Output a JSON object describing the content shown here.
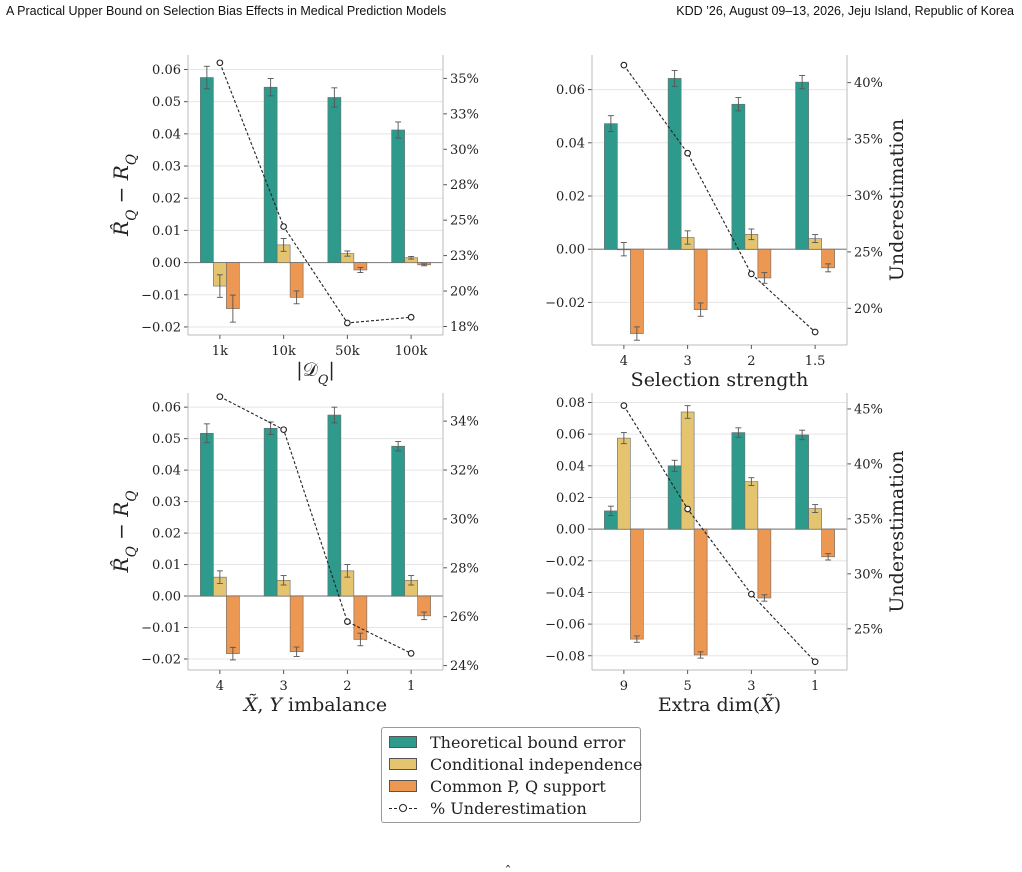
{
  "header": {
    "left": "A Practical Upper Bound on Selection Bias Effects in Medical Prediction Models",
    "right": "KDD ’26, August 09–13, 2026, Jeju Island, Republic of Korea"
  },
  "colors": {
    "theory": "#2e9a8c",
    "cond": "#e4c46e",
    "support": "#ec9752",
    "line": "#222222",
    "grid": "#e5e5e5"
  },
  "legend": {
    "items": [
      {
        "label": "Theoretical bound error",
        "kind": "bar",
        "color": "#2e9a8c"
      },
      {
        "label": "Conditional independence",
        "kind": "bar",
        "color": "#e4c46e"
      },
      {
        "label": "Common P, Q support",
        "kind": "bar",
        "color": "#ec9752"
      },
      {
        "label": "% Underestimation",
        "kind": "line",
        "color": "#222222"
      }
    ]
  },
  "chart_data": [
    {
      "type": "bar",
      "xlabel": "|𝒟Q|",
      "ylabel": "R̂Q − RQ",
      "y2label": "",
      "categories": [
        "1k",
        "10k",
        "50k",
        "100k"
      ],
      "ylim": [
        -0.0225,
        0.0645
      ],
      "yticks": [
        -0.02,
        -0.01,
        0.0,
        0.01,
        0.02,
        0.03,
        0.04,
        0.05,
        0.06
      ],
      "y2lim": [
        0.169,
        0.3665
      ],
      "y2ticks": [
        0.175,
        0.2,
        0.225,
        0.25,
        0.275,
        0.3,
        0.325,
        0.35
      ],
      "y2ticklabels": [
        "18%",
        "20%",
        "23%",
        "25%",
        "28%",
        "30%",
        "33%",
        "35%"
      ],
      "series": [
        {
          "name": "Theoretical bound error",
          "values": [
            0.0575,
            0.0545,
            0.0513,
            0.0412
          ],
          "err": [
            0.0035,
            0.0027,
            0.003,
            0.0025
          ]
        },
        {
          "name": "Conditional independence",
          "values": [
            -0.0073,
            0.0055,
            0.0028,
            0.0015
          ],
          "err": [
            0.0035,
            0.002,
            0.0008,
            0.0004
          ]
        },
        {
          "name": "Common P, Q support",
          "values": [
            -0.0143,
            -0.0108,
            -0.0023,
            -0.0007
          ],
          "err": [
            0.0042,
            0.002,
            0.0008,
            0.0003
          ]
        }
      ],
      "line": {
        "name": "% Underestimation",
        "values": [
          0.361,
          0.2455,
          0.1775,
          0.1815
        ]
      }
    },
    {
      "type": "bar",
      "xlabel": "Selection strength",
      "ylabel": "",
      "y2label": "Underestimation",
      "categories": [
        "4",
        "3",
        "2",
        "1.5"
      ],
      "ylim": [
        -0.036,
        0.073
      ],
      "yticks": [
        -0.02,
        0.0,
        0.02,
        0.04,
        0.06
      ],
      "y2lim": [
        0.1675,
        0.4245
      ],
      "y2ticks": [
        0.2,
        0.25,
        0.3,
        0.35,
        0.4
      ],
      "y2ticklabels": [
        "20%",
        "25%",
        "30%",
        "35%",
        "40%"
      ],
      "series": [
        {
          "name": "Theoretical bound error",
          "values": [
            0.0472,
            0.0642,
            0.0545,
            0.0628
          ],
          "err": [
            0.003,
            0.003,
            0.0025,
            0.0025
          ]
        },
        {
          "name": "Conditional independence",
          "values": [
            0.0,
            0.0044,
            0.0056,
            0.004
          ],
          "err": [
            0.0025,
            0.0025,
            0.002,
            0.0015
          ]
        },
        {
          "name": "Common P, Q support",
          "values": [
            -0.0317,
            -0.0227,
            -0.0108,
            -0.007
          ],
          "err": [
            0.0025,
            0.0025,
            0.002,
            0.0015
          ]
        }
      ],
      "line": {
        "name": "% Underestimation",
        "values": [
          0.4155,
          0.3375,
          0.2305,
          0.179
        ]
      }
    },
    {
      "type": "bar",
      "xlabel": "X̃, Y imbalance",
      "ylabel": "R̂Q − RQ",
      "y2label": "",
      "categories": [
        "4",
        "3",
        "2",
        "1"
      ],
      "ylim": [
        -0.0235,
        0.0645
      ],
      "yticks": [
        -0.02,
        -0.01,
        0.0,
        0.01,
        0.02,
        0.03,
        0.04,
        0.05,
        0.06
      ],
      "y2lim": [
        0.2382,
        0.3515
      ],
      "y2ticks": [
        0.24,
        0.26,
        0.28,
        0.3,
        0.32,
        0.34
      ],
      "y2ticklabels": [
        "24%",
        "26%",
        "28%",
        "30%",
        "32%",
        "34%"
      ],
      "series": [
        {
          "name": "Theoretical bound error",
          "values": [
            0.0517,
            0.0533,
            0.0575,
            0.0476
          ],
          "err": [
            0.003,
            0.002,
            0.0025,
            0.0015
          ]
        },
        {
          "name": "Conditional independence",
          "values": [
            0.006,
            0.005,
            0.008,
            0.005
          ],
          "err": [
            0.002,
            0.0015,
            0.002,
            0.0015
          ]
        },
        {
          "name": "Common P, Q support",
          "values": [
            -0.0183,
            -0.0177,
            -0.0138,
            -0.0063
          ],
          "err": [
            0.002,
            0.0015,
            0.002,
            0.0012
          ]
        }
      ],
      "line": {
        "name": "% Underestimation",
        "values": [
          0.35,
          0.3365,
          0.258,
          0.245
        ]
      }
    },
    {
      "type": "bar",
      "xlabel": "Extra dim(X̃)",
      "ylabel": "",
      "y2label": "Underestimation",
      "categories": [
        "9",
        "5",
        "3",
        "1"
      ],
      "ylim": [
        -0.089,
        0.086
      ],
      "yticks": [
        -0.08,
        -0.06,
        -0.04,
        -0.02,
        0.0,
        0.02,
        0.04,
        0.06,
        0.08
      ],
      "y2lim": [
        0.2125,
        0.4645
      ],
      "y2ticks": [
        0.25,
        0.3,
        0.35,
        0.4,
        0.45
      ],
      "y2ticklabels": [
        "25%",
        "30%",
        "35%",
        "40%",
        "45%"
      ],
      "series": [
        {
          "name": "Theoretical bound error",
          "values": [
            0.0115,
            0.04,
            0.061,
            0.0595
          ],
          "err": [
            0.003,
            0.0035,
            0.003,
            0.003
          ]
        },
        {
          "name": "Conditional independence",
          "values": [
            0.0575,
            0.074,
            0.03,
            0.013
          ],
          "err": [
            0.0035,
            0.004,
            0.0025,
            0.0025
          ]
        },
        {
          "name": "Common P, Q support",
          "values": [
            -0.0695,
            -0.0795,
            -0.0435,
            -0.0175
          ],
          "err": [
            0.002,
            0.002,
            0.002,
            0.002
          ]
        }
      ],
      "line": {
        "name": "% Underestimation",
        "values": [
          0.453,
          0.359,
          0.2815,
          0.22
        ]
      }
    }
  ]
}
